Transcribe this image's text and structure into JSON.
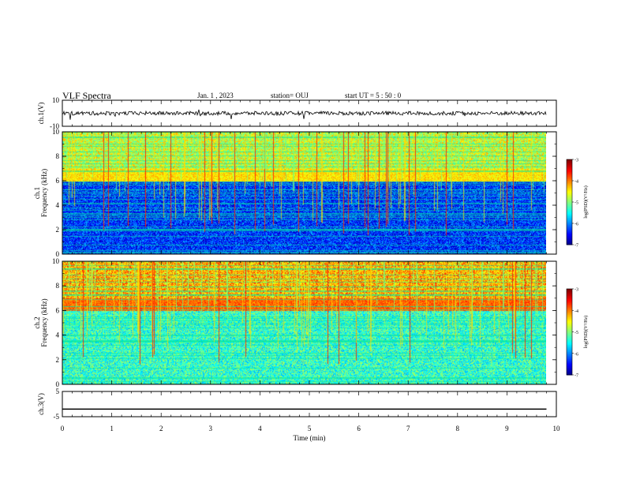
{
  "header": {
    "title": "VLF Spectra",
    "date": "Jan.  1  , 2023",
    "station": "station= OUJ",
    "start": "start  UT =   5  : 50 : 0"
  },
  "chart_data": [
    {
      "type": "line",
      "panel": "ch1-waveform",
      "ylabel": "ch.1(V)",
      "ylim": [
        -10,
        10
      ],
      "yticks": [
        "10",
        "-10"
      ],
      "xlim": [
        0,
        10
      ],
      "description_values": {
        "baseline_v": 0,
        "noise_amplitude_v": 1.5
      }
    },
    {
      "type": "heatmap",
      "panel": "ch1-spectrogram",
      "ylabel": "ch.1\nFrequency  (kHz)",
      "ylim": [
        0,
        10
      ],
      "yticks": [
        "0",
        "2",
        "4",
        "6",
        "8",
        "10"
      ],
      "xlim": [
        0,
        10
      ],
      "colorbar": {
        "label": "log(PSD)(V²/Hz)",
        "range": [
          -7,
          -3
        ],
        "ticks": [
          "-3",
          "-4",
          "-5",
          "-6",
          "-7"
        ]
      },
      "band_kHz": [
        6,
        7
      ],
      "hiss_level": -5
    },
    {
      "type": "heatmap",
      "panel": "ch2-spectrogram",
      "ylabel": "ch.2\nFrequency  (kHz)",
      "ylim": [
        0,
        10
      ],
      "yticks": [
        "0",
        "2",
        "4",
        "6",
        "8",
        "10"
      ],
      "xlim": [
        0,
        10
      ],
      "colorbar": {
        "label": "log(PSD)(V²/Hz)",
        "range": [
          -7,
          -3
        ],
        "ticks": [
          "-3",
          "-4",
          "-5",
          "-6",
          "-7"
        ]
      },
      "band_kHz": [
        6,
        7
      ],
      "hiss_level": -4.5
    },
    {
      "type": "line",
      "panel": "ch3-waveform",
      "ylabel": "ch.3(V)",
      "ylim": [
        -5,
        5
      ],
      "yticks": [
        "5",
        "-5"
      ],
      "x": [
        0,
        9.8
      ],
      "y": [
        -2,
        -2
      ],
      "xlim": [
        0,
        10
      ],
      "xticks": [
        "0",
        "1",
        "2",
        "3",
        "4",
        "5",
        "6",
        "7",
        "8",
        "9",
        "10"
      ],
      "xlabel": "Time  (min)"
    }
  ],
  "colors": {
    "low": "#00008f",
    "mid": "#00ff80",
    "high": "#ff0000",
    "axis": "#000000"
  }
}
